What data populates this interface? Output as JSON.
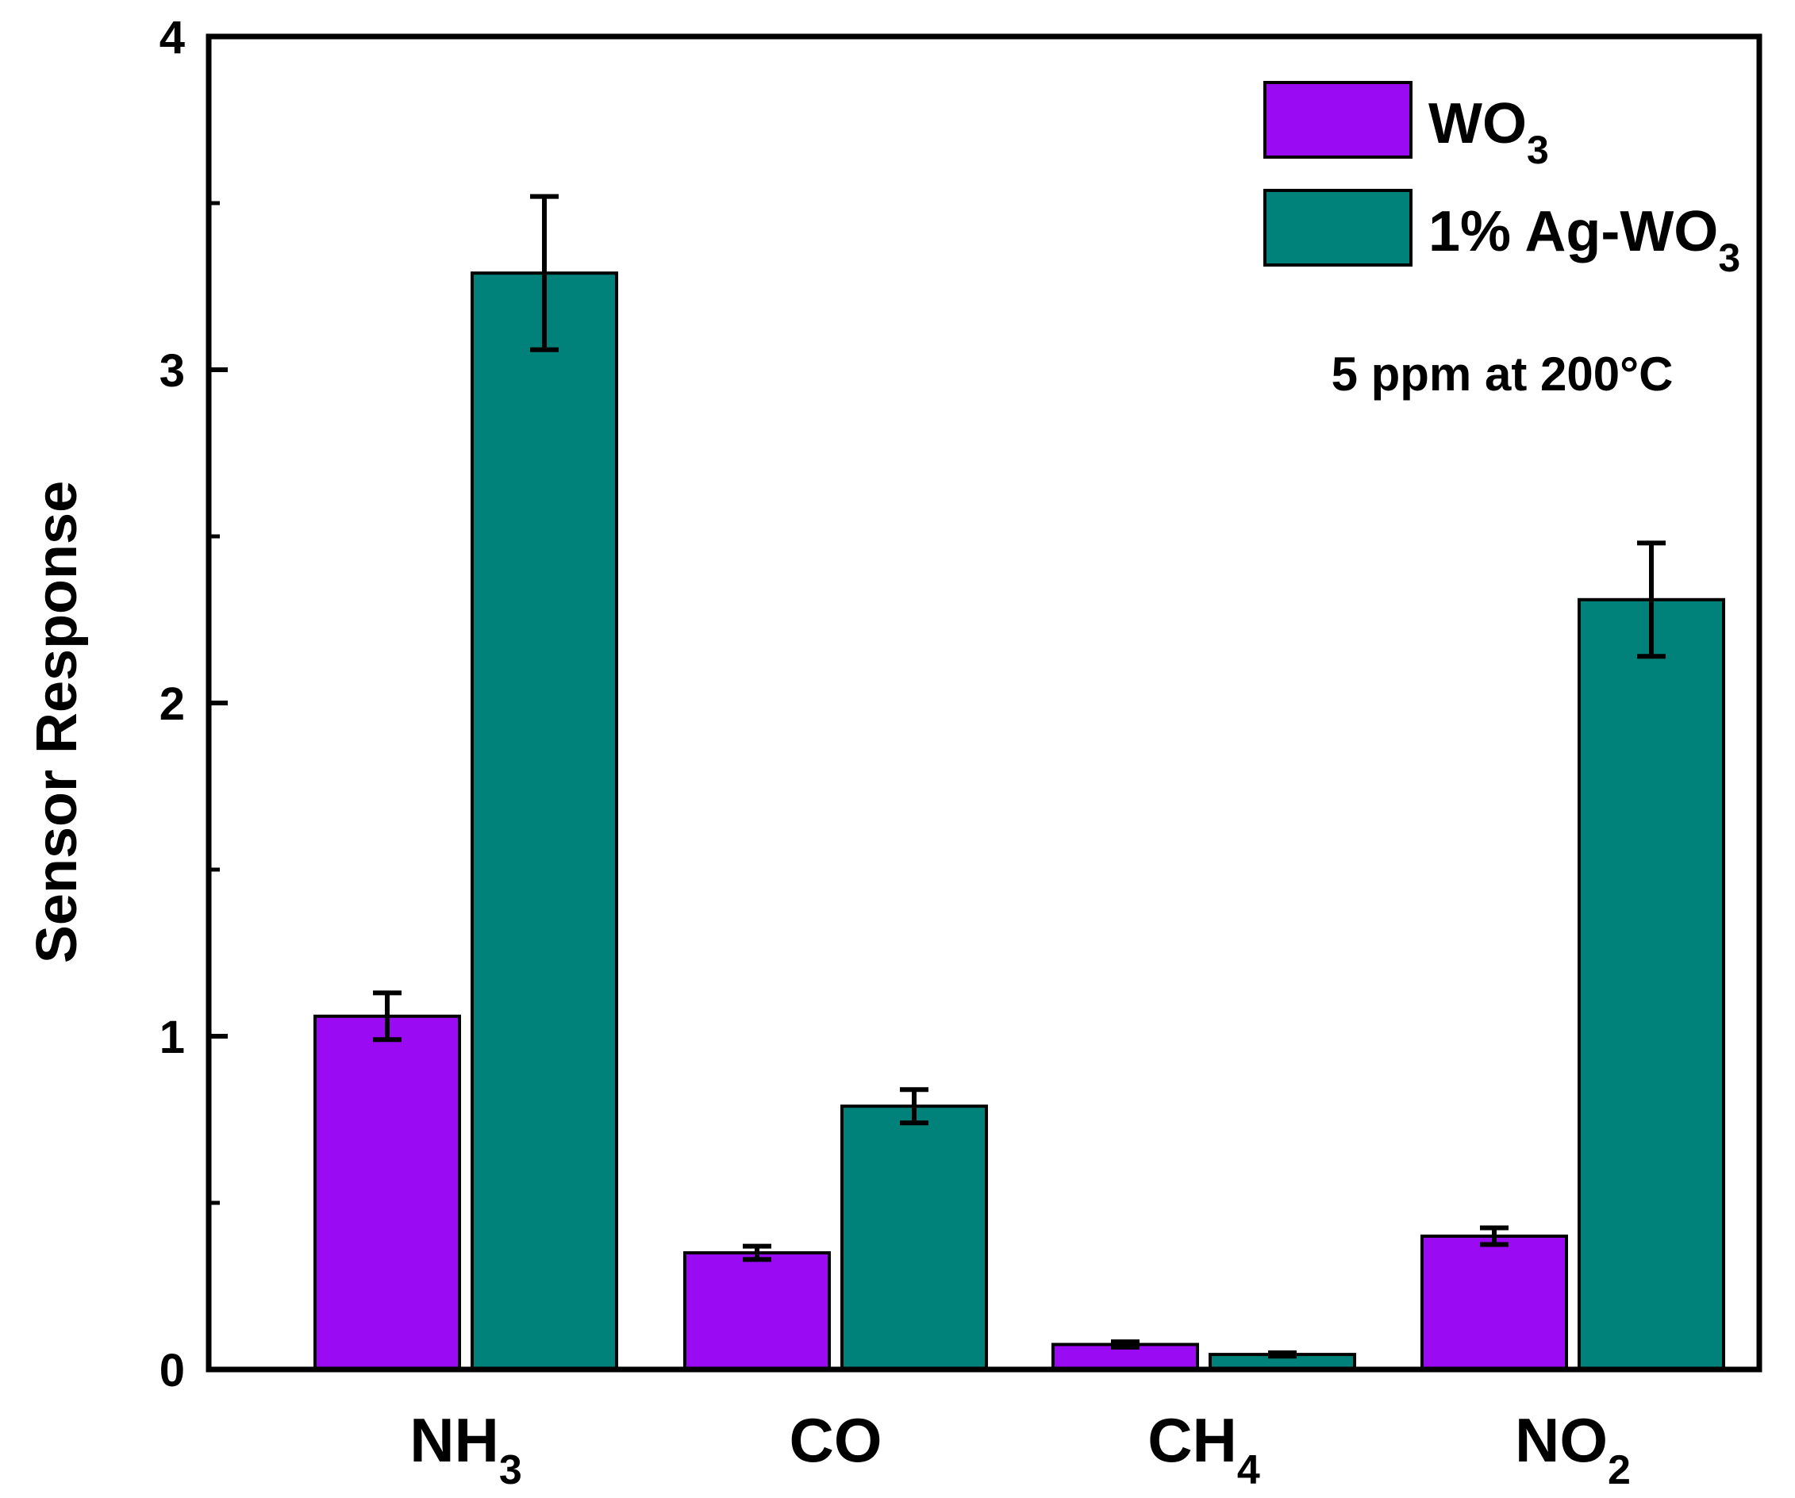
{
  "chart_data": {
    "type": "bar",
    "title": "",
    "xlabel": "",
    "ylabel": "Sensor Response",
    "ylim": [
      0,
      4
    ],
    "yticks": [
      "0",
      "1",
      "2",
      "3",
      "4"
    ],
    "categories": [
      {
        "base": "NH",
        "sub": "3"
      },
      {
        "base": "CO",
        "sub": ""
      },
      {
        "base": "CH",
        "sub": "4"
      },
      {
        "base": "NO",
        "sub": "2"
      }
    ],
    "series": [
      {
        "name": "WO",
        "name_sub": "3",
        "name_suffix": "",
        "color": "#9A0AF2",
        "values": [
          1.06,
          0.35,
          0.075,
          0.4
        ],
        "errors": [
          0.07,
          0.02,
          0.008,
          0.025
        ]
      },
      {
        "name": "1% Ag-WO",
        "name_sub": "3",
        "name_suffix": "",
        "color": "#00827A",
        "values": [
          3.29,
          0.79,
          0.045,
          2.31
        ],
        "errors": [
          0.23,
          0.05,
          0.005,
          0.17
        ]
      }
    ],
    "annotation": "5 ppm at 200°C",
    "legend_position": "top-right",
    "grid": false
  }
}
